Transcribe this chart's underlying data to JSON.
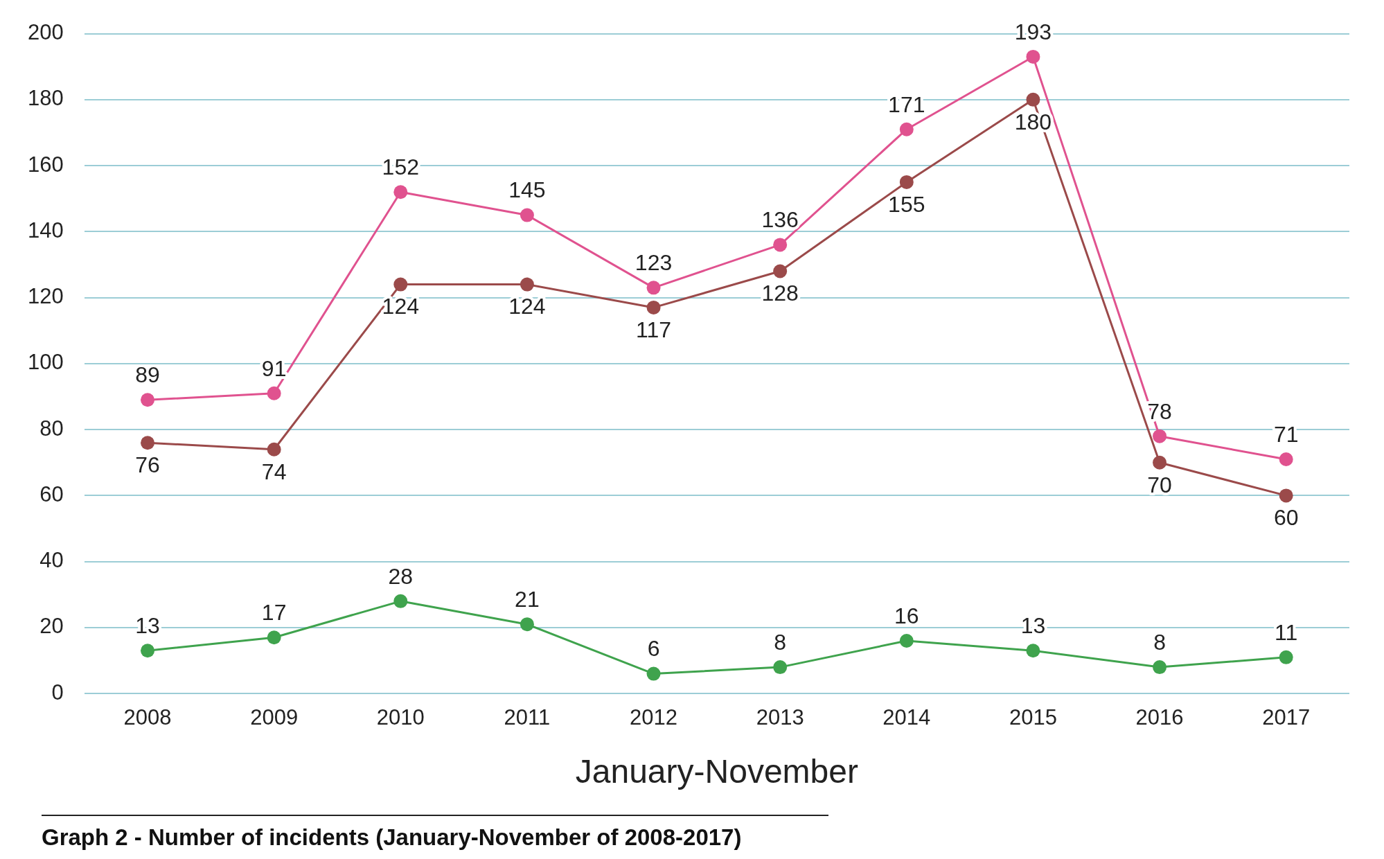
{
  "chart_data": {
    "type": "line",
    "xlabel": "January-November",
    "categories": [
      "2008",
      "2009",
      "2010",
      "2011",
      "2012",
      "2013",
      "2014",
      "2015",
      "2016",
      "2017"
    ],
    "series": [
      {
        "color": "#e0528f",
        "values": [
          89,
          91,
          152,
          145,
          123,
          136,
          171,
          193,
          78,
          71
        ]
      },
      {
        "color": "#9b4a4a",
        "values": [
          76,
          74,
          124,
          124,
          117,
          128,
          155,
          180,
          70,
          60
        ]
      },
      {
        "color": "#3fa34d",
        "values": [
          13,
          17,
          28,
          21,
          6,
          8,
          16,
          13,
          8,
          11
        ]
      }
    ],
    "ylim": [
      0,
      200
    ],
    "yticks": [
      0,
      20,
      40,
      60,
      80,
      100,
      120,
      140,
      160,
      180,
      200
    ],
    "grid": "y",
    "legend": false,
    "marker": "circle",
    "line_style": "solid",
    "data_labels": true,
    "annotations": [
      "Graph 2 - Number of incidents (January-November of 2008-2017)"
    ]
  }
}
